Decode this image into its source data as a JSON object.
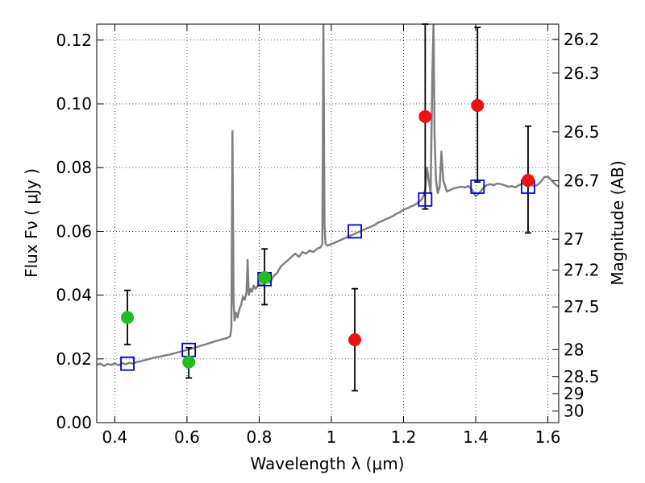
{
  "chart_data": {
    "type": "scatter",
    "xlabel": "Wavelength  λ (μm)",
    "ylabel": "Flux  Fν  ( μJy )",
    "ylabel_right": "Magnitude (AB)",
    "xlim": [
      0.35,
      1.63
    ],
    "ylim": [
      0.0,
      0.125
    ],
    "grid": true,
    "x_ticks": [
      {
        "value": 0.4,
        "label": "0.4"
      },
      {
        "value": 0.6,
        "label": "0.6"
      },
      {
        "value": 0.8,
        "label": "0.8"
      },
      {
        "value": 1.0,
        "label": "1"
      },
      {
        "value": 1.2,
        "label": "1.2"
      },
      {
        "value": 1.4,
        "label": "1.4"
      },
      {
        "value": 1.6,
        "label": "1.6"
      }
    ],
    "y_ticks": [
      {
        "value": 0.0,
        "label": "0.00"
      },
      {
        "value": 0.02,
        "label": "0.02"
      },
      {
        "value": 0.04,
        "label": "0.04"
      },
      {
        "value": 0.06,
        "label": "0.06"
      },
      {
        "value": 0.08,
        "label": "0.08"
      },
      {
        "value": 0.1,
        "label": "0.10"
      },
      {
        "value": 0.12,
        "label": "0.12"
      }
    ],
    "mag_ticks": [
      {
        "mag": 26.2,
        "label": "26.2"
      },
      {
        "mag": 26.3,
        "label": "26.3"
      },
      {
        "mag": 26.5,
        "label": "26.5"
      },
      {
        "mag": 26.7,
        "label": "26.7"
      },
      {
        "mag": 27.0,
        "label": "27"
      },
      {
        "mag": 27.2,
        "label": "27.2"
      },
      {
        "mag": 27.5,
        "label": "27.5"
      },
      {
        "mag": 28.0,
        "label": "28"
      },
      {
        "mag": 28.5,
        "label": "28.5"
      },
      {
        "mag": 29.0,
        "label": "29"
      },
      {
        "mag": 30.0,
        "label": "30"
      }
    ],
    "series": [
      {
        "kind": "line",
        "color": "#808080",
        "points": [
          [
            0.35,
            0.0182
          ],
          [
            0.36,
            0.0185
          ],
          [
            0.37,
            0.0178
          ],
          [
            0.38,
            0.0184
          ],
          [
            0.39,
            0.0181
          ],
          [
            0.4,
            0.0186
          ],
          [
            0.41,
            0.018
          ],
          [
            0.42,
            0.0187
          ],
          [
            0.43,
            0.0183
          ],
          [
            0.44,
            0.0188
          ],
          [
            0.45,
            0.0185
          ],
          [
            0.46,
            0.019
          ],
          [
            0.47,
            0.0192
          ],
          [
            0.48,
            0.0195
          ],
          [
            0.49,
            0.0198
          ],
          [
            0.5,
            0.0201
          ],
          [
            0.51,
            0.0204
          ],
          [
            0.52,
            0.0206
          ],
          [
            0.53,
            0.0208
          ],
          [
            0.54,
            0.0211
          ],
          [
            0.55,
            0.0213
          ],
          [
            0.56,
            0.0216
          ],
          [
            0.57,
            0.0219
          ],
          [
            0.58,
            0.0222
          ],
          [
            0.59,
            0.0225
          ],
          [
            0.6,
            0.0228
          ],
          [
            0.61,
            0.0231
          ],
          [
            0.62,
            0.0235
          ],
          [
            0.63,
            0.0238
          ],
          [
            0.64,
            0.0242
          ],
          [
            0.65,
            0.0245
          ],
          [
            0.66,
            0.0249
          ],
          [
            0.67,
            0.0252
          ],
          [
            0.68,
            0.0256
          ],
          [
            0.69,
            0.0259
          ],
          [
            0.7,
            0.0262
          ],
          [
            0.71,
            0.0265
          ],
          [
            0.715,
            0.0268
          ],
          [
            0.72,
            0.027
          ],
          [
            0.723,
            0.03
          ],
          [
            0.726,
            0.0915
          ],
          [
            0.729,
            0.038
          ],
          [
            0.732,
            0.032
          ],
          [
            0.736,
            0.0345
          ],
          [
            0.74,
            0.033
          ],
          [
            0.745,
            0.0355
          ],
          [
            0.75,
            0.037
          ],
          [
            0.755,
            0.0395
          ],
          [
            0.76,
            0.0385
          ],
          [
            0.765,
            0.041
          ],
          [
            0.768,
            0.051
          ],
          [
            0.771,
            0.04
          ],
          [
            0.776,
            0.042
          ],
          [
            0.78,
            0.041
          ],
          [
            0.785,
            0.043
          ],
          [
            0.79,
            0.042
          ],
          [
            0.8,
            0.0435
          ],
          [
            0.81,
            0.043
          ],
          [
            0.82,
            0.0445
          ],
          [
            0.83,
            0.044
          ],
          [
            0.84,
            0.046
          ],
          [
            0.85,
            0.047
          ],
          [
            0.86,
            0.049
          ],
          [
            0.87,
            0.05
          ],
          [
            0.88,
            0.051
          ],
          [
            0.89,
            0.052
          ],
          [
            0.9,
            0.053
          ],
          [
            0.91,
            0.052
          ],
          [
            0.92,
            0.0535
          ],
          [
            0.93,
            0.053
          ],
          [
            0.94,
            0.054
          ],
          [
            0.95,
            0.0535
          ],
          [
            0.96,
            0.0545
          ],
          [
            0.97,
            0.055
          ],
          [
            0.975,
            0.056
          ],
          [
            0.978,
            0.125
          ],
          [
            0.981,
            0.062
          ],
          [
            0.984,
            0.056
          ],
          [
            0.99,
            0.0555
          ],
          [
            1.0,
            0.056
          ],
          [
            1.01,
            0.0565
          ],
          [
            1.02,
            0.057
          ],
          [
            1.03,
            0.0575
          ],
          [
            1.04,
            0.058
          ],
          [
            1.05,
            0.0585
          ],
          [
            1.06,
            0.059
          ],
          [
            1.07,
            0.0595
          ],
          [
            1.08,
            0.06
          ],
          [
            1.09,
            0.0605
          ],
          [
            1.1,
            0.061
          ],
          [
            1.11,
            0.0615
          ],
          [
            1.12,
            0.062
          ],
          [
            1.13,
            0.0628
          ],
          [
            1.14,
            0.0632
          ],
          [
            1.15,
            0.0638
          ],
          [
            1.16,
            0.0642
          ],
          [
            1.17,
            0.0648
          ],
          [
            1.18,
            0.0655
          ],
          [
            1.19,
            0.066
          ],
          [
            1.2,
            0.0668
          ],
          [
            1.21,
            0.0672
          ],
          [
            1.22,
            0.0678
          ],
          [
            1.23,
            0.0682
          ],
          [
            1.24,
            0.069
          ],
          [
            1.25,
            0.07
          ],
          [
            1.255,
            0.071
          ],
          [
            1.26,
            0.073
          ],
          [
            1.265,
            0.08
          ],
          [
            1.27,
            0.076
          ],
          [
            1.275,
            0.072
          ],
          [
            1.28,
            0.11
          ],
          [
            1.283,
            0.125
          ],
          [
            1.286,
            0.09
          ],
          [
            1.29,
            0.076
          ],
          [
            1.295,
            0.072
          ],
          [
            1.3,
            0.074
          ],
          [
            1.305,
            0.085
          ],
          [
            1.31,
            0.076
          ],
          [
            1.32,
            0.0725
          ],
          [
            1.33,
            0.073
          ],
          [
            1.34,
            0.0735
          ],
          [
            1.35,
            0.0738
          ],
          [
            1.36,
            0.074
          ],
          [
            1.37,
            0.0738
          ],
          [
            1.38,
            0.0742
          ],
          [
            1.39,
            0.073
          ],
          [
            1.4,
            0.071
          ],
          [
            1.41,
            0.072
          ],
          [
            1.42,
            0.0735
          ],
          [
            1.43,
            0.0745
          ],
          [
            1.44,
            0.0748
          ],
          [
            1.45,
            0.0745
          ],
          [
            1.46,
            0.075
          ],
          [
            1.47,
            0.0748
          ],
          [
            1.48,
            0.0745
          ],
          [
            1.49,
            0.074
          ],
          [
            1.5,
            0.0742
          ],
          [
            1.51,
            0.0738
          ],
          [
            1.52,
            0.0745
          ],
          [
            1.53,
            0.075
          ],
          [
            1.54,
            0.0752
          ],
          [
            1.55,
            0.0748
          ],
          [
            1.56,
            0.0742
          ],
          [
            1.57,
            0.0745
          ],
          [
            1.58,
            0.0755
          ],
          [
            1.59,
            0.077
          ],
          [
            1.6,
            0.0772
          ],
          [
            1.61,
            0.076
          ],
          [
            1.62,
            0.0748
          ],
          [
            1.63,
            0.074
          ]
        ]
      },
      {
        "kind": "markers",
        "marker": "square",
        "color": "#0000cc",
        "points": [
          [
            0.435,
            0.0185
          ],
          [
            0.605,
            0.0228
          ],
          [
            0.815,
            0.045
          ],
          [
            1.065,
            0.06
          ],
          [
            1.26,
            0.07
          ],
          [
            1.405,
            0.074
          ],
          [
            1.545,
            0.074
          ]
        ]
      },
      {
        "kind": "markers",
        "marker": "circle",
        "color": "#22bb22",
        "points": [
          {
            "x": 0.435,
            "y": 0.033,
            "lo": 0.0245,
            "hi": 0.0415
          },
          {
            "x": 0.605,
            "y": 0.019,
            "lo": 0.014,
            "hi": 0.0235
          },
          {
            "x": 0.815,
            "y": 0.0455,
            "lo": 0.037,
            "hi": 0.0545
          }
        ]
      },
      {
        "kind": "markers",
        "marker": "circle",
        "color": "#ee1111",
        "points": [
          {
            "x": 1.065,
            "y": 0.026,
            "lo": 0.01,
            "hi": 0.042
          },
          {
            "x": 1.26,
            "y": 0.096,
            "lo": 0.067,
            "hi": 0.125
          },
          {
            "x": 1.405,
            "y": 0.0995,
            "lo": 0.0755,
            "hi": 0.124
          },
          {
            "x": 1.545,
            "y": 0.076,
            "lo": 0.0595,
            "hi": 0.093
          }
        ]
      }
    ]
  }
}
